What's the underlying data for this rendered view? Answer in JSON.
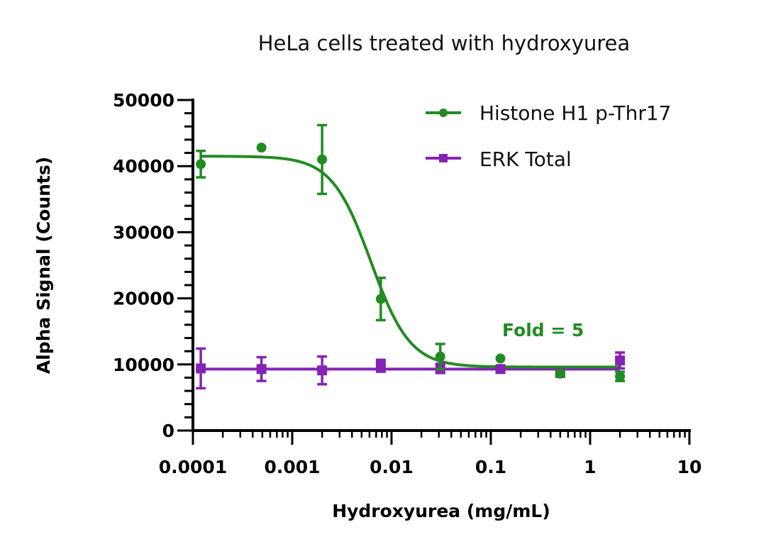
{
  "chart_data": {
    "type": "scatter",
    "title": "HeLa cells treated with hydroxyurea",
    "xlabel": "Hydroxyurea (mg/mL)",
    "ylabel": "Alpha Signal (Counts)",
    "xscale": "log",
    "xlim": [
      0.0001,
      10
    ],
    "ylim": [
      0,
      50000
    ],
    "x_tick_labels": [
      "0.0001",
      "0.001",
      "0.01",
      "0.1",
      "1",
      "10"
    ],
    "y_tick_labels": [
      "0",
      "10000",
      "20000",
      "30000",
      "40000",
      "50000"
    ],
    "grid": false,
    "legend_position": "top-right",
    "annotations": [
      {
        "text": "Fold = 5",
        "color": "#228B22"
      }
    ],
    "x": [
      0.00012,
      0.00049,
      0.002,
      0.0078,
      0.031,
      0.125,
      0.5,
      2
    ],
    "series": [
      {
        "name": "Histone H1 p-Thr17",
        "color": "#228B22",
        "marker": "circle",
        "fit": "sigmoidal 4PL",
        "values": [
          40300,
          42800,
          41000,
          19900,
          11200,
          10900,
          8600,
          8200
        ],
        "error": [
          2000,
          0,
          5200,
          3200,
          1900,
          0,
          400,
          700
        ]
      },
      {
        "name": "ERK Total",
        "color": "#8523B5",
        "marker": "square",
        "fit": "horizontal line",
        "values": [
          9400,
          9300,
          9100,
          9800,
          9400,
          9300,
          8700,
          10600
        ],
        "error": [
          3000,
          1800,
          2100,
          900,
          700,
          300,
          300,
          1200
        ]
      }
    ],
    "fit_params": {
      "Histone H1 p-Thr17": {
        "top": 41500,
        "bottom": 9600,
        "ec50": 0.0062,
        "hill": -2.2
      },
      "ERK Total": {
        "level": 9300
      }
    }
  },
  "legend": {
    "items": [
      {
        "label": "Histone H1 p-Thr17",
        "color": "#228B22",
        "marker": "circle"
      },
      {
        "label": "ERK Total",
        "color": "#8523B5",
        "marker": "square"
      }
    ]
  },
  "annotation": {
    "fold": "Fold = 5"
  }
}
